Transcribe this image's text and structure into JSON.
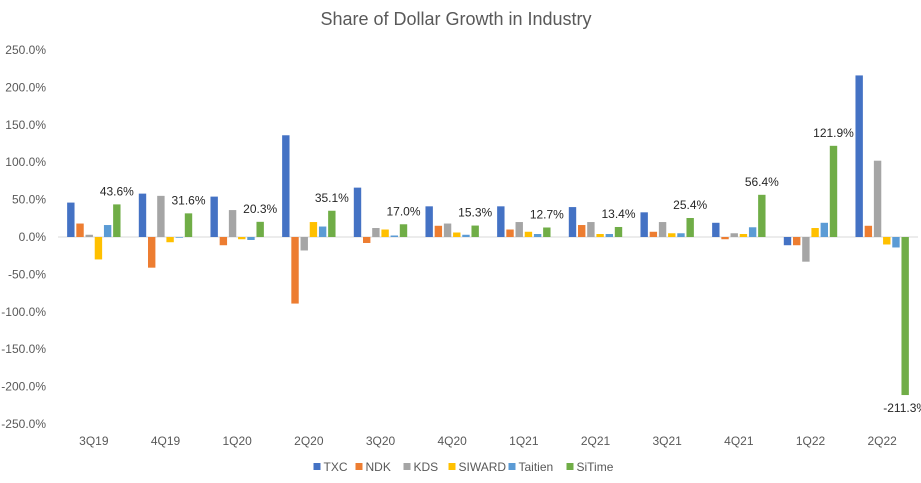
{
  "chart_data": {
    "type": "bar",
    "title": "Share of Dollar Growth in Industry",
    "xlabel": "",
    "ylabel": "",
    "categories": [
      "3Q19",
      "4Q19",
      "1Q20",
      "2Q20",
      "3Q20",
      "4Q20",
      "1Q21",
      "2Q21",
      "3Q21",
      "4Q21",
      "1Q22",
      "2Q22"
    ],
    "ylim": [
      -250,
      250
    ],
    "y_ticks": [
      250,
      200,
      150,
      100,
      50,
      0,
      -50,
      -100,
      -150,
      -200,
      -250
    ],
    "y_tick_labels": [
      "250.0%",
      "200.0%",
      "150.0%",
      "100.0%",
      "50.0%",
      "0.0%",
      "-50.0%",
      "-100.0%",
      "-150.0%",
      "-200.0%",
      "-250.0%"
    ],
    "grid": false,
    "legend_position": "bottom",
    "series": [
      {
        "name": "TXC",
        "color": "#4472C4",
        "values": [
          46,
          58,
          54,
          136,
          66,
          41,
          41,
          40,
          33,
          19,
          -11,
          216
        ]
      },
      {
        "name": "NDK",
        "color": "#ED7D31",
        "values": [
          18,
          -41,
          -11,
          -89,
          -8,
          15,
          10,
          16,
          7,
          -3,
          -11,
          15
        ]
      },
      {
        "name": "KDS",
        "color": "#A5A5A5",
        "values": [
          3,
          55,
          36,
          -18,
          12,
          18,
          20,
          20,
          20,
          5,
          -33,
          102
        ]
      },
      {
        "name": "SIWARD",
        "color": "#FFC000",
        "values": [
          -30,
          -7,
          -3,
          20,
          10,
          6,
          7,
          4,
          5,
          4,
          12,
          -10
        ]
      },
      {
        "name": "Taitien",
        "color": "#5B9BD5",
        "values": [
          16,
          -1,
          -4,
          14,
          2,
          3,
          4,
          4,
          5,
          13,
          19,
          -14
        ]
      },
      {
        "name": "SiTime",
        "color": "#70AD47",
        "values": [
          43.6,
          31.6,
          20.3,
          35.1,
          17.0,
          15.3,
          12.7,
          13.4,
          25.4,
          56.4,
          121.9,
          -211.3
        ]
      }
    ],
    "data_labels": {
      "series": "SiTime",
      "values": [
        "43.6%",
        "31.6%",
        "20.3%",
        "35.1%",
        "17.0%",
        "15.3%",
        "12.7%",
        "13.4%",
        "25.4%",
        "56.4%",
        "121.9%",
        "-211.3%"
      ]
    }
  }
}
